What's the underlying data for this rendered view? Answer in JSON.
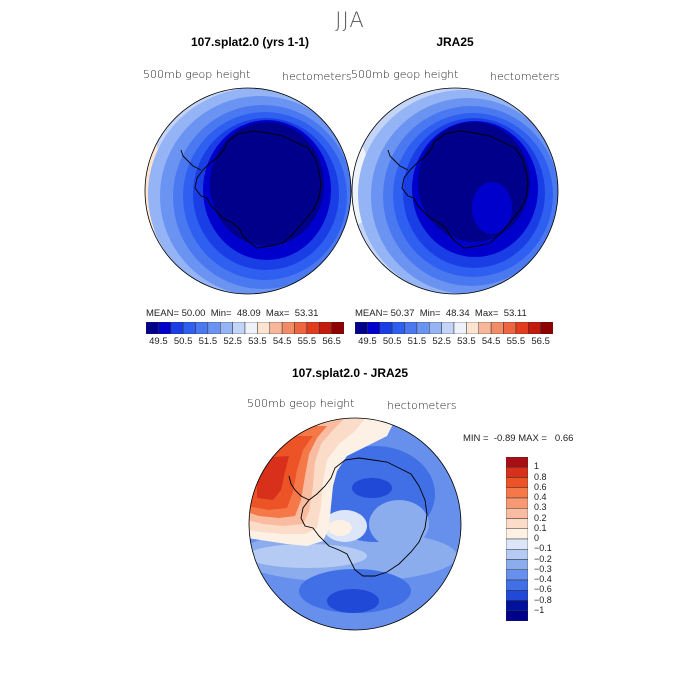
{
  "figure": {
    "season_title": "JJA"
  },
  "chart_data": [
    {
      "type": "heatmap",
      "title": "107.splat2.0 (yrs 1-1)",
      "field_label": "500mb geop height",
      "units_label": "hectometers",
      "projection": "south polar stereographic",
      "stats": {
        "mean_label": "MEAN=",
        "mean": "50.00",
        "min_label": "Min=",
        "min": "48.09",
        "max_label": "Max=",
        "max": "53.31"
      }
    },
    {
      "type": "heatmap",
      "title": "JRA25",
      "field_label": "500mb geop height",
      "units_label": "hectometers",
      "projection": "south polar stereographic",
      "stats": {
        "mean_label": "MEAN=",
        "mean": "50.37",
        "min_label": "Min=",
        "min": "48.34",
        "max_label": "Max=",
        "max": "53.11"
      }
    },
    {
      "type": "heatmap",
      "title": "107.splat2.0 - JRA25",
      "field_label": "500mb geop height",
      "units_label": "hectometers",
      "projection": "south polar stereographic",
      "stats": {
        "min_label": "MIN =",
        "min": "-0.89",
        "max_label": "MAX =",
        "max": "0.66"
      }
    }
  ],
  "colorbar_top": {
    "tick_labels": [
      "49.5",
      "50.5",
      "51.5",
      "52.5",
      "53.5",
      "54.5",
      "55.5",
      "56.5"
    ],
    "colors": [
      "#00008b",
      "#0000cd",
      "#1a3ee6",
      "#2f5ff0",
      "#4a78f0",
      "#6b94f2",
      "#95b4f5",
      "#c3d4f7",
      "#eef2fb",
      "#fde4d0",
      "#f8b79a",
      "#f28c66",
      "#ee6540",
      "#e23c1c",
      "#c41a0c",
      "#8f0000"
    ]
  },
  "colorbar_diff": {
    "tick_labels": [
      "1",
      "0.8",
      "0.6",
      "0.4",
      "0.3",
      "0.2",
      "0.1",
      "0",
      "−0.1",
      "−0.2",
      "−0.3",
      "−0.4",
      "−0.6",
      "−0.8",
      "−1"
    ],
    "colors": [
      "#a50f15",
      "#d8301a",
      "#ec5428",
      "#f57848",
      "#f79a74",
      "#f9bca0",
      "#fbdcc8",
      "#fdf1e6",
      "#dce6f8",
      "#b5cbf3",
      "#8badee",
      "#6690ec",
      "#416fe6",
      "#1f49d6",
      "#00129c",
      "#00008b"
    ]
  }
}
